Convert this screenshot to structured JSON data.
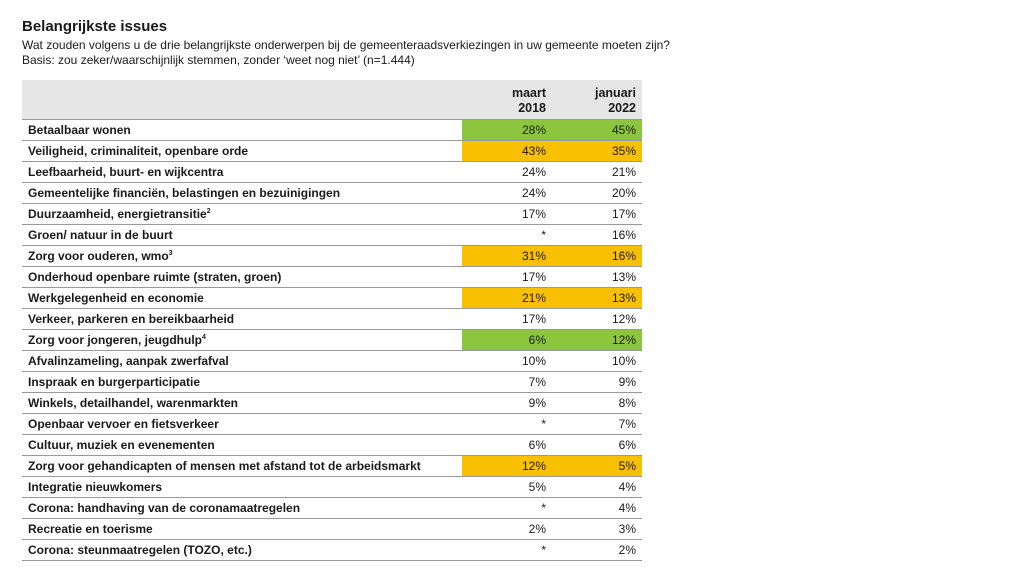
{
  "title": "Belangrijkste issues",
  "subtitle": "Wat zouden volgens u de drie belangrijkste onderwerpen bij de gemeenteraadsverkiezingen in uw gemeente moeten zijn?",
  "basis": "Basis: zou zeker/waarschijnlijk stemmen, zonder ‘weet nog niet’ (n=1.444)",
  "colors": {
    "green": "#8cc63f",
    "orange": "#f8c000",
    "header_bg": "#e6e6e6"
  },
  "chart_data": {
    "type": "table",
    "columns": [
      {
        "line1": "maart",
        "line2": "2018"
      },
      {
        "line1": "januari",
        "line2": "2022"
      }
    ],
    "rows": [
      {
        "label": "Betaalbaar wonen",
        "sup": "",
        "values": [
          "28%",
          "45%"
        ],
        "highlight": "green"
      },
      {
        "label": "Veiligheid, criminaliteit, openbare orde",
        "sup": "",
        "values": [
          "43%",
          "35%"
        ],
        "highlight": "orange"
      },
      {
        "label": "Leefbaarheid, buurt- en wijkcentra",
        "sup": "",
        "values": [
          "24%",
          "21%"
        ],
        "highlight": ""
      },
      {
        "label": "Gemeentelijke financiën, belastingen en bezuinigingen",
        "sup": "",
        "values": [
          "24%",
          "20%"
        ],
        "highlight": ""
      },
      {
        "label": "Duurzaamheid, energietransitie",
        "sup": "2",
        "values": [
          "17%",
          "17%"
        ],
        "highlight": ""
      },
      {
        "label": "Groen/ natuur in de buurt",
        "sup": "",
        "values": [
          "*",
          "16%"
        ],
        "highlight": ""
      },
      {
        "label": "Zorg voor ouderen, wmo",
        "sup": "3",
        "values": [
          "31%",
          "16%"
        ],
        "highlight": "orange"
      },
      {
        "label": "Onderhoud openbare ruimte (straten, groen)",
        "sup": "",
        "values": [
          "17%",
          "13%"
        ],
        "highlight": ""
      },
      {
        "label": "Werkgelegenheid en economie",
        "sup": "",
        "values": [
          "21%",
          "13%"
        ],
        "highlight": "orange"
      },
      {
        "label": "Verkeer, parkeren en bereikbaarheid",
        "sup": "",
        "values": [
          "17%",
          "12%"
        ],
        "highlight": ""
      },
      {
        "label": "Zorg voor jongeren, jeugdhulp",
        "sup": "4",
        "values": [
          "6%",
          "12%"
        ],
        "highlight": "green"
      },
      {
        "label": "Afvalinzameling, aanpak zwerfafval",
        "sup": "",
        "values": [
          "10%",
          "10%"
        ],
        "highlight": ""
      },
      {
        "label": "Inspraak en burgerparticipatie",
        "sup": "",
        "values": [
          "7%",
          "9%"
        ],
        "highlight": ""
      },
      {
        "label": "Winkels, detailhandel, warenmarkten",
        "sup": "",
        "values": [
          "9%",
          "8%"
        ],
        "highlight": ""
      },
      {
        "label": "Openbaar vervoer en fietsverkeer",
        "sup": "",
        "values": [
          "*",
          "7%"
        ],
        "highlight": ""
      },
      {
        "label": "Cultuur, muziek en evenementen",
        "sup": "",
        "values": [
          "6%",
          "6%"
        ],
        "highlight": ""
      },
      {
        "label": "Zorg voor gehandicapten of mensen met afstand tot de arbeidsmarkt",
        "sup": "",
        "values": [
          "12%",
          "5%"
        ],
        "highlight": "orange"
      },
      {
        "label": "Integratie nieuwkomers",
        "sup": "",
        "values": [
          "5%",
          "4%"
        ],
        "highlight": ""
      },
      {
        "label": "Corona: handhaving van de coronamaatregelen",
        "sup": "",
        "values": [
          "*",
          "4%"
        ],
        "highlight": ""
      },
      {
        "label": "Recreatie en toerisme",
        "sup": "",
        "values": [
          "2%",
          "3%"
        ],
        "highlight": ""
      },
      {
        "label": "Corona: steunmaatregelen (TOZO, etc.)",
        "sup": "",
        "values": [
          "*",
          "2%"
        ],
        "highlight": ""
      }
    ]
  }
}
